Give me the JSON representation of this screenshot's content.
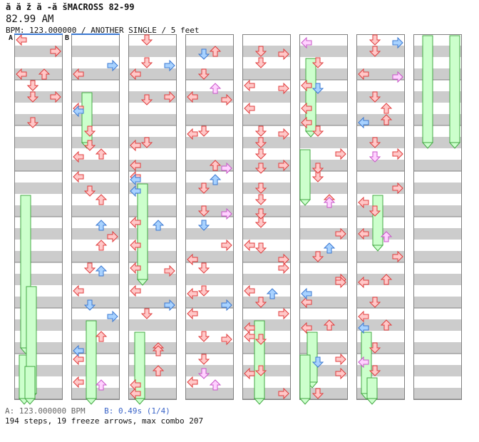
{
  "header": {
    "title": "ă  ă ž ă -ă šMACROSS 82-99",
    "time": "82.99 AM",
    "subtitle": "BPM: 123.000000 / ANOTHER SINGLE / 5 feet"
  },
  "markers": {
    "a": "A",
    "b": "B"
  },
  "footer": {
    "line1_a": "A: 123.000000 BPM",
    "line1_b": "B: 0.49s (1/4)",
    "line2": "194 steps, 19 freeze arrows, max combo 207"
  },
  "colors": {
    "stripe": "#cccccc",
    "arrow_red_fill": "#ffc8c8",
    "arrow_red_edge": "#e03c3c",
    "arrow_blue_fill": "#a8d2ff",
    "arrow_blue_edge": "#3a78d2",
    "arrow_pink_fill": "#ffd2ff",
    "arrow_pink_edge": "#c856c8",
    "freeze_fill": "#ccffcc",
    "freeze_edge": "#44aa44",
    "marker_line": "#3a78d2"
  },
  "columns": [
    {
      "notes": [
        [
          3,
          "left",
          "red",
          0
        ],
        [
          5,
          "right",
          "red",
          0
        ],
        [
          3,
          "up",
          "red",
          0
        ],
        [
          4,
          "down",
          "red",
          0
        ],
        [
          1,
          "right",
          "red",
          0
        ],
        [
          0,
          "left",
          "red",
          0
        ],
        [
          1,
          "right",
          "red",
          0
        ],
        [
          4,
          "down",
          "red",
          0
        ],
        [
          1,
          "right",
          "red",
          0
        ],
        [
          5,
          "down",
          "red",
          0
        ]
      ],
      "freezes": [
        [
          14,
          "down",
          27,
          16
        ],
        [
          28,
          "down",
          47,
          14
        ],
        [
          22,
          "down",
          31,
          24
        ],
        [
          29,
          "down",
          44,
          22
        ]
      ]
    },
    {
      "notes": [
        [
          3,
          "left",
          "red",
          1
        ],
        [
          6,
          "left",
          "red",
          1
        ],
        [
          8,
          "down",
          "red",
          1
        ],
        [
          10,
          "up",
          "red",
          1
        ],
        [
          12,
          "left",
          "red",
          1
        ],
        [
          14,
          "up",
          "red",
          1
        ],
        [
          18,
          "up",
          "red",
          1
        ],
        [
          20,
          "down",
          "red",
          1
        ],
        [
          22,
          "left",
          "red",
          1
        ],
        [
          26,
          "up",
          "red",
          1
        ],
        [
          28,
          "left",
          "red",
          1
        ],
        [
          30,
          "left",
          "red",
          1
        ],
        [
          32,
          "up",
          "red",
          1
        ],
        [
          34,
          "down",
          "red",
          1
        ]
      ],
      "freezes": [
        [
          5,
          "up",
          9,
          22
        ],
        [
          25,
          "down",
          33,
          28
        ]
      ]
    },
    {
      "notes": [
        [
          0,
          "down",
          "red",
          2
        ],
        [
          2,
          "down",
          "red",
          2
        ],
        [
          3,
          "left",
          "red",
          2
        ],
        [
          5,
          "right",
          "red",
          2
        ],
        [
          9,
          "down",
          "red",
          2
        ],
        [
          11,
          "left",
          "red",
          2
        ],
        [
          12,
          "left",
          "red",
          2
        ],
        [
          16,
          "left",
          "red",
          2
        ],
        [
          18,
          "left",
          "red",
          2
        ],
        [
          20,
          "left",
          "red",
          2
        ],
        [
          22,
          "left",
          "red",
          2
        ],
        [
          24,
          "down",
          "red",
          2
        ],
        [
          27,
          "up",
          "red",
          2
        ],
        [
          29,
          "up",
          "red",
          2
        ],
        [
          31,
          "left",
          "red",
          2
        ],
        [
          33,
          "down",
          "red",
          2
        ],
        [
          35,
          "left",
          "red",
          2
        ]
      ],
      "freezes": [
        [
          13,
          "down",
          21,
          20
        ],
        [
          26,
          "down",
          35,
          16
        ]
      ]
    },
    {
      "notes": [
        [
          1,
          "up",
          "red",
          3
        ],
        [
          3,
          "down",
          "red",
          3
        ],
        [
          5,
          "left",
          "red",
          3
        ],
        [
          8,
          "down",
          "red",
          3
        ],
        [
          11,
          "up",
          "red",
          3
        ],
        [
          13,
          "down",
          "red",
          3
        ],
        [
          15,
          "down",
          "red",
          3
        ],
        [
          18,
          "right",
          "red",
          3
        ],
        [
          20,
          "down",
          "red",
          3
        ],
        [
          22,
          "down",
          "red",
          3
        ],
        [
          24,
          "left",
          "red",
          3
        ],
        [
          26,
          "down",
          "red",
          3
        ],
        [
          28,
          "down",
          "red",
          3
        ],
        [
          30,
          "left",
          "red",
          3
        ],
        [
          32,
          "up",
          "red",
          3
        ],
        [
          34,
          "down",
          "red",
          3
        ]
      ],
      "freezes": []
    },
    {
      "notes": [
        [
          1,
          "down",
          "red",
          4
        ],
        [
          2,
          "down",
          "red",
          4
        ],
        [
          4,
          "left",
          "red",
          4
        ],
        [
          6,
          "left",
          "red",
          4
        ],
        [
          8,
          "down",
          "red",
          4
        ],
        [
          9,
          "down",
          "red",
          4
        ],
        [
          10,
          "down",
          "red",
          4
        ],
        [
          11,
          "right",
          "red",
          4
        ],
        [
          13,
          "down",
          "red",
          4
        ],
        [
          14,
          "down",
          "red",
          4
        ],
        [
          16,
          "down",
          "red",
          4
        ],
        [
          18,
          "left",
          "red",
          4
        ],
        [
          20,
          "right",
          "red",
          4
        ],
        [
          22,
          "left",
          "red",
          4
        ],
        [
          23,
          "down",
          "red",
          4
        ],
        [
          24,
          "right",
          "red",
          4
        ],
        [
          26,
          "left",
          "red",
          4
        ],
        [
          29,
          "down",
          "red",
          4
        ],
        [
          31,
          "right",
          "red",
          4
        ],
        [
          33,
          "down",
          "red",
          4
        ],
        [
          35,
          "right",
          "red",
          4
        ]
      ],
      "freezes": [
        [
          25,
          "up",
          33,
          24
        ]
      ]
    },
    {
      "notes": [
        [
          2,
          "down",
          "red",
          5
        ],
        [
          4,
          "left",
          "red",
          5
        ],
        [
          6,
          "left",
          "red",
          5
        ],
        [
          8,
          "down",
          "red",
          5
        ],
        [
          10,
          "right",
          "red",
          5
        ],
        [
          12,
          "down",
          "red",
          5
        ],
        [
          14,
          "up",
          "red",
          5
        ],
        [
          17,
          "right",
          "red",
          5
        ],
        [
          19,
          "down",
          "red",
          5
        ],
        [
          21,
          "right",
          "red",
          5
        ],
        [
          23,
          "left",
          "red",
          5
        ],
        [
          25,
          "up",
          "red",
          5
        ],
        [
          28,
          "right",
          "red",
          5
        ],
        [
          31,
          "down",
          "red",
          5
        ],
        [
          34,
          "right",
          "red",
          5
        ]
      ],
      "freezes": [
        [
          2,
          "up",
          8,
          16
        ],
        [
          10,
          "down",
          14,
          8
        ],
        [
          26,
          "down",
          30,
          18
        ],
        [
          28,
          "left",
          33,
          8
        ]
      ]
    },
    {
      "notes": [
        [
          0,
          "down",
          "red",
          6
        ],
        [
          1,
          "down",
          "red",
          6
        ],
        [
          3,
          "left",
          "red",
          6
        ],
        [
          5,
          "down",
          "red",
          6
        ],
        [
          6,
          "up",
          "red",
          6
        ],
        [
          7,
          "up",
          "red",
          6
        ],
        [
          9,
          "down",
          "red",
          6
        ],
        [
          10,
          "right",
          "red",
          6
        ],
        [
          13,
          "right",
          "red",
          6
        ],
        [
          15,
          "down",
          "red",
          6
        ],
        [
          17,
          "left",
          "red",
          6
        ],
        [
          19,
          "right",
          "red",
          6
        ],
        [
          21,
          "up",
          "red",
          6
        ],
        [
          23,
          "down",
          "red",
          6
        ],
        [
          25,
          "up",
          "red",
          6
        ],
        [
          27,
          "down",
          "red",
          6
        ],
        [
          29,
          "down",
          "red",
          6
        ],
        [
          32,
          "right",
          "red",
          6
        ],
        [
          34,
          "down",
          "red",
          6
        ]
      ],
      "freezes": [
        [
          14,
          "down",
          18,
          30
        ],
        [
          26,
          "down",
          31,
          14
        ],
        [
          30,
          "up",
          35,
          22
        ]
      ]
    },
    {
      "notes": [],
      "freezes": [
        [
          0,
          "up",
          9,
          20
        ],
        [
          0,
          "up",
          9,
          58
        ]
      ]
    }
  ],
  "extra_arrows": [
    [
      0,
      "down",
      "red",
      0
    ],
    [
      1,
      "left",
      "red",
      1
    ],
    [
      1,
      "right",
      "red",
      1
    ],
    [
      1,
      "right",
      "blue",
      1
    ],
    [
      1,
      "left",
      "blue",
      1
    ],
    [
      1,
      "left",
      "blue",
      1
    ],
    [
      1,
      "down",
      "red",
      1
    ],
    [
      1,
      "up",
      "blue",
      1
    ],
    [
      1,
      "left",
      "blue",
      1
    ],
    [
      1,
      "right",
      "blue",
      1
    ],
    [
      1,
      "down",
      "red",
      1
    ],
    [
      1,
      "up",
      "blue",
      1
    ],
    [
      1,
      "down",
      "blue",
      1
    ],
    [
      1,
      "up",
      "pink",
      1
    ],
    [
      2,
      "left",
      "blue",
      2
    ],
    [
      2,
      "right",
      "red",
      2
    ],
    [
      2,
      "up",
      "red",
      2
    ],
    [
      2,
      "right",
      "blue",
      2
    ],
    [
      2,
      "left",
      "red",
      2
    ],
    [
      2,
      "up",
      "blue",
      2
    ],
    [
      2,
      "right",
      "blue",
      2
    ],
    [
      2,
      "left",
      "red",
      2
    ],
    [
      2,
      "down",
      "red",
      2
    ],
    [
      2,
      "left",
      "blue",
      2
    ],
    [
      3,
      "down",
      "blue",
      3
    ],
    [
      3,
      "right",
      "blue",
      3
    ],
    [
      3,
      "up",
      "pink",
      3
    ],
    [
      3,
      "right",
      "red",
      3
    ],
    [
      3,
      "up",
      "blue",
      3
    ],
    [
      3,
      "left",
      "red",
      3
    ],
    [
      3,
      "right",
      "red",
      3
    ],
    [
      3,
      "down",
      "blue",
      3
    ],
    [
      3,
      "left",
      "red",
      3
    ],
    [
      3,
      "right",
      "pink",
      3
    ],
    [
      3,
      "left",
      "red",
      3
    ],
    [
      3,
      "down",
      "pink",
      3
    ],
    [
      3,
      "up",
      "pink",
      3
    ],
    [
      3,
      "right",
      "pink",
      3
    ],
    [
      4,
      "right",
      "red",
      4
    ],
    [
      4,
      "down",
      "red",
      4
    ],
    [
      4,
      "right",
      "red",
      4
    ],
    [
      4,
      "right",
      "red",
      4
    ],
    [
      4,
      "down",
      "red",
      4
    ],
    [
      4,
      "up",
      "blue",
      4
    ],
    [
      4,
      "left",
      "red",
      4
    ],
    [
      4,
      "right",
      "red",
      4
    ],
    [
      4,
      "down",
      "red",
      4
    ],
    [
      4,
      "down",
      "red",
      4
    ],
    [
      4,
      "left",
      "red",
      4
    ],
    [
      5,
      "left",
      "blue",
      5
    ],
    [
      5,
      "right",
      "red",
      5
    ],
    [
      5,
      "down",
      "blue",
      5
    ],
    [
      5,
      "down",
      "red",
      5
    ],
    [
      5,
      "up",
      "blue",
      5
    ],
    [
      5,
      "left",
      "red",
      5
    ],
    [
      5,
      "left",
      "pink",
      5
    ],
    [
      5,
      "left",
      "red",
      5
    ],
    [
      5,
      "up",
      "pink",
      5
    ],
    [
      5,
      "right",
      "red",
      5
    ],
    [
      5,
      "down",
      "blue",
      5
    ],
    [
      6,
      "left",
      "blue",
      6
    ],
    [
      6,
      "right",
      "blue",
      6
    ],
    [
      6,
      "left",
      "blue",
      6
    ],
    [
      6,
      "left",
      "red",
      6
    ],
    [
      6,
      "left",
      "red",
      6
    ],
    [
      6,
      "left",
      "pink",
      6
    ],
    [
      6,
      "right",
      "pink",
      6
    ],
    [
      6,
      "down",
      "pink",
      6
    ],
    [
      6,
      "up",
      "pink",
      6
    ],
    [
      6,
      "left",
      "red",
      6
    ]
  ]
}
